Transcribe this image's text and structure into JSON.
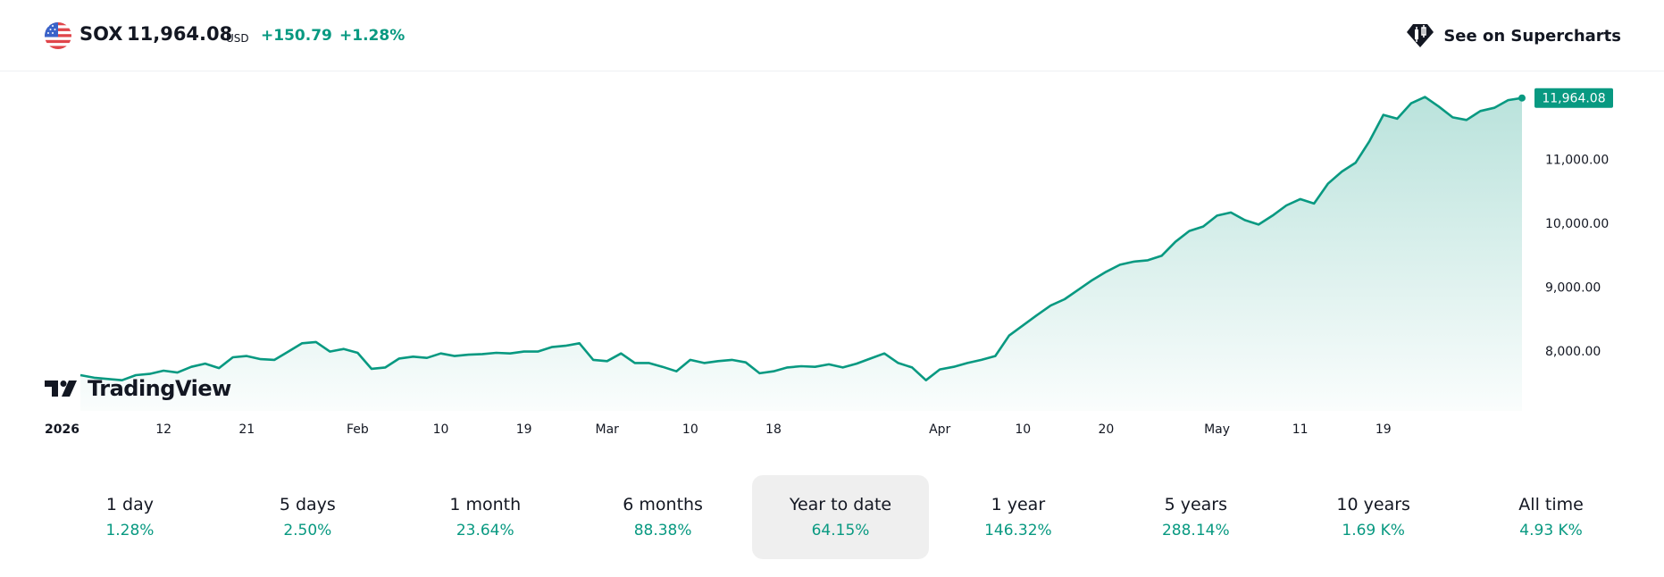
{
  "header": {
    "symbol": "SOX",
    "price": "11,964.08",
    "currency": "USD",
    "change": "+150.79",
    "change_pct": "+1.28%",
    "supercharts_label": "See on Supercharts"
  },
  "brand": {
    "logo_text": "TradingView"
  },
  "colors": {
    "up": "#089981",
    "text": "#131722",
    "area": "#089981"
  },
  "chart_data": {
    "type": "area",
    "series": [
      {
        "values": [
          7620,
          7580,
          7560,
          7540,
          7620,
          7640,
          7690,
          7660,
          7750,
          7800,
          7730,
          7900,
          7920,
          7870,
          7860,
          7990,
          8120,
          8140,
          7990,
          8030,
          7970,
          7720,
          7740,
          7880,
          7910,
          7890,
          7960,
          7920,
          7940,
          7950,
          7970,
          7960,
          7990,
          7990,
          8060,
          8080,
          8120,
          7860,
          7840,
          7960,
          7810,
          7810,
          7750,
          7680,
          7860,
          7810,
          7840,
          7860,
          7820,
          7650,
          7680,
          7740,
          7760,
          7750,
          7790,
          7740,
          7800,
          7880,
          7960,
          7810,
          7740,
          7540,
          7710,
          7750,
          7810,
          7860,
          7920,
          8240,
          8400,
          8560,
          8710,
          8810,
          8960,
          9110,
          9240,
          9350,
          9400,
          9420,
          9490,
          9710,
          9880,
          9950,
          10120,
          10170,
          10050,
          9980,
          10120,
          10280,
          10380,
          10310,
          10620,
          10810,
          10950,
          11290,
          11700,
          11640,
          11880,
          11980,
          11830,
          11660,
          11620,
          11760,
          11810,
          11930,
          11964.08
        ]
      }
    ],
    "last_value_label": "11,964.08",
    "y_ticks": [
      "11,000.00",
      "10,000.00",
      "9,000.00",
      "8,000.00"
    ],
    "y_tick_values": [
      11000,
      10000,
      9000,
      8000
    ],
    "ylim": [
      7060,
      12100
    ],
    "x_tick_labels": [
      "2026",
      "12",
      "21",
      "Feb",
      "10",
      "19",
      "Mar",
      "10",
      "18",
      "Apr",
      "10",
      "20",
      "May",
      "11",
      "19"
    ],
    "grid": false
  },
  "ranges": [
    {
      "label": "1 day",
      "value": "1.28%"
    },
    {
      "label": "5 days",
      "value": "2.50%"
    },
    {
      "label": "1 month",
      "value": "23.64%"
    },
    {
      "label": "6 months",
      "value": "88.38%"
    },
    {
      "label": "Year to date",
      "value": "64.15%",
      "active": true
    },
    {
      "label": "1 year",
      "value": "146.32%"
    },
    {
      "label": "5 years",
      "value": "288.14%"
    },
    {
      "label": "10 years",
      "value": "1.69 K%"
    },
    {
      "label": "All time",
      "value": "4.93 K%"
    }
  ]
}
